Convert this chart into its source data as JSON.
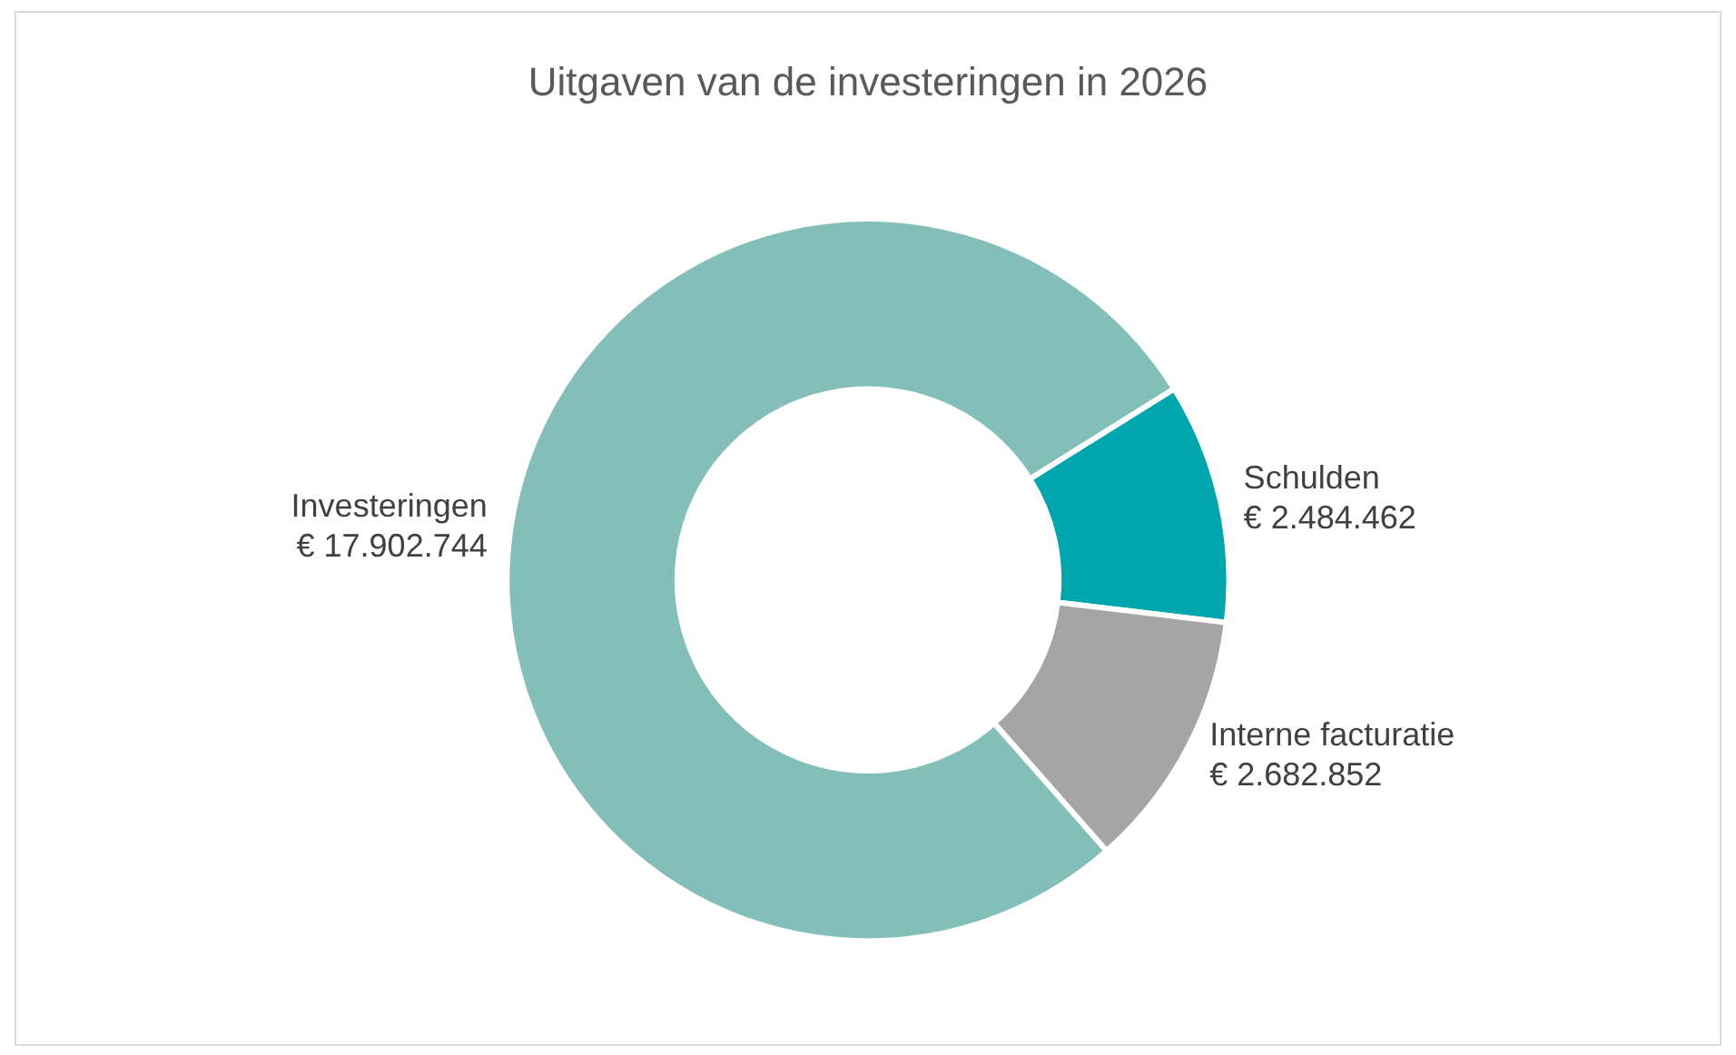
{
  "chart_data": {
    "type": "donut",
    "title": "Uitgaven van de investeringen in 2026",
    "categories": [
      "Schulden",
      "Interne facturatie",
      "Investeringen"
    ],
    "values": [
      2484462,
      2682852,
      17902744
    ],
    "colors": [
      "#00a6ad",
      "#a5a5a5",
      "#83bfb8"
    ],
    "value_labels": [
      "€ 2.484.462",
      "€ 2.682.852",
      "€ 17.902.744"
    ],
    "legend": false
  }
}
